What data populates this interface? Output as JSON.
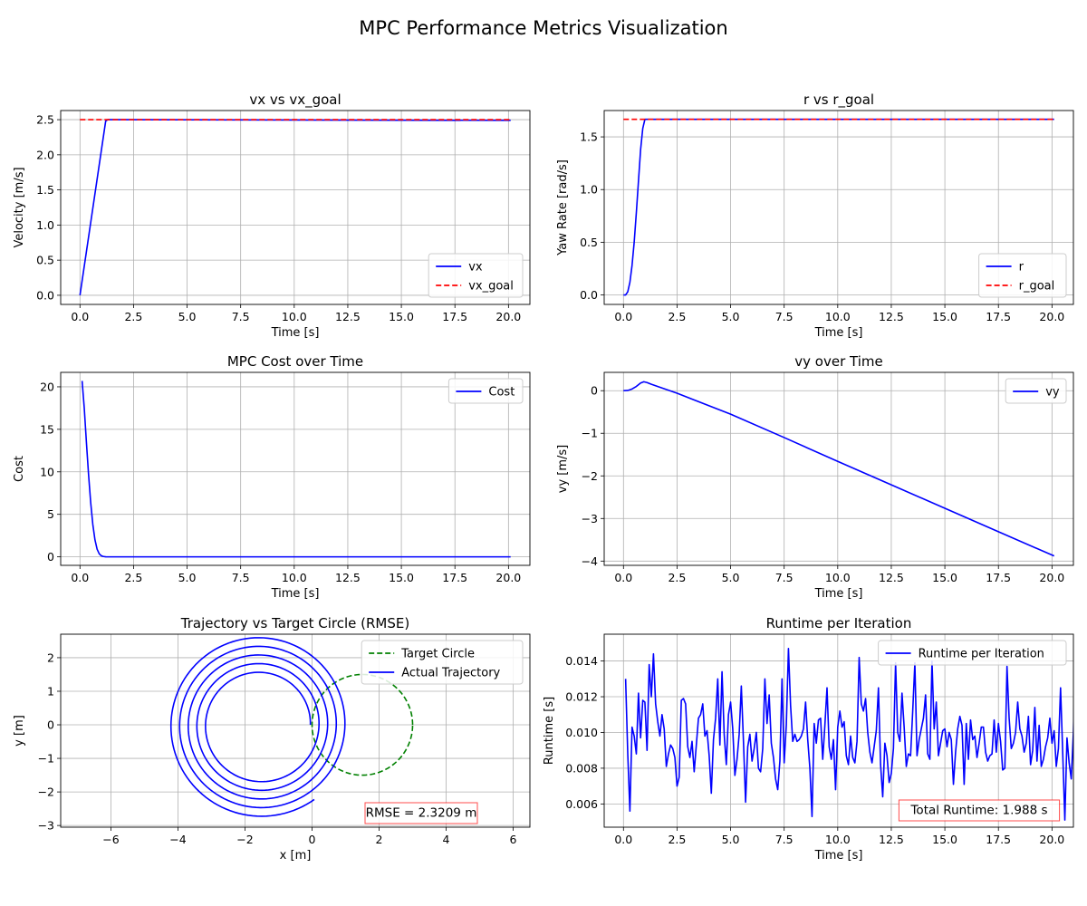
{
  "figure_title": "MPC Performance Metrics Visualization",
  "colors": {
    "blue": "#0000ff",
    "red": "#ff0000",
    "green": "#008000",
    "grid": "#b0b0b0"
  },
  "chart_data": [
    {
      "id": "vx",
      "type": "line",
      "title": "vx vs vx_goal",
      "xlabel": "Time [s]",
      "ylabel": "Velocity [m/s]",
      "xlim": [
        -0.9,
        21.0
      ],
      "ylim": [
        -0.13,
        2.63
      ],
      "xticks": [
        0,
        2.5,
        5,
        7.5,
        10,
        12.5,
        15,
        17.5,
        20
      ],
      "xtick_labels": [
        "0.0",
        "2.5",
        "5.0",
        "7.5",
        "10.0",
        "12.5",
        "15.0",
        "17.5",
        "20.0"
      ],
      "yticks": [
        0,
        0.5,
        1,
        1.5,
        2,
        2.5
      ],
      "ytick_labels": [
        "0.0",
        "0.5",
        "1.0",
        "1.5",
        "2.0",
        "2.5"
      ],
      "grid": true,
      "legend": "lower-right",
      "series": [
        {
          "name": "vx",
          "color": "#0000ff",
          "dash": "solid",
          "x": [
            0,
            1.2,
            1.3,
            20.1
          ],
          "y": [
            0,
            2.48,
            2.5,
            2.49
          ]
        },
        {
          "name": "vx_goal",
          "color": "#ff0000",
          "dash": "dashed",
          "x": [
            0,
            20.1
          ],
          "y": [
            2.5,
            2.5
          ]
        }
      ]
    },
    {
      "id": "r",
      "type": "line",
      "title": "r vs r_goal",
      "xlabel": "Time [s]",
      "ylabel": "Yaw Rate [rad/s]",
      "xlim": [
        -0.9,
        21.0
      ],
      "ylim": [
        -0.09,
        1.75
      ],
      "xticks": [
        0,
        2.5,
        5,
        7.5,
        10,
        12.5,
        15,
        17.5,
        20
      ],
      "xtick_labels": [
        "0.0",
        "2.5",
        "5.0",
        "7.5",
        "10.0",
        "12.5",
        "15.0",
        "17.5",
        "20.0"
      ],
      "yticks": [
        0,
        0.5,
        1,
        1.5
      ],
      "ytick_labels": [
        "0.0",
        "0.5",
        "1.0",
        "1.5"
      ],
      "grid": true,
      "legend": "lower-right",
      "series": [
        {
          "name": "r",
          "color": "#0000ff",
          "dash": "solid",
          "x": [
            0,
            0.1,
            0.2,
            0.3,
            0.4,
            0.5,
            0.6,
            0.7,
            0.8,
            0.9,
            1.0,
            20.1
          ],
          "y": [
            0,
            0,
            0.03,
            0.12,
            0.28,
            0.5,
            0.78,
            1.08,
            1.38,
            1.58,
            1.667,
            1.667
          ]
        },
        {
          "name": "r_goal",
          "color": "#ff0000",
          "dash": "dashed",
          "x": [
            0,
            20.1
          ],
          "y": [
            1.667,
            1.667
          ]
        }
      ]
    },
    {
      "id": "cost",
      "type": "line",
      "title": "MPC Cost over Time",
      "xlabel": "Time [s]",
      "ylabel": "Cost",
      "xlim": [
        -0.9,
        21.0
      ],
      "ylim": [
        -1.0,
        21.7
      ],
      "xticks": [
        0,
        2.5,
        5,
        7.5,
        10,
        12.5,
        15,
        17.5,
        20
      ],
      "xtick_labels": [
        "0.0",
        "2.5",
        "5.0",
        "7.5",
        "10.0",
        "12.5",
        "15.0",
        "17.5",
        "20.0"
      ],
      "yticks": [
        0,
        5,
        10,
        15,
        20
      ],
      "ytick_labels": [
        "0",
        "5",
        "10",
        "15",
        "20"
      ],
      "grid": true,
      "legend": "upper-right",
      "series": [
        {
          "name": "Cost",
          "color": "#0000ff",
          "dash": "solid",
          "x": [
            0.1,
            0.2,
            0.3,
            0.4,
            0.5,
            0.6,
            0.7,
            0.8,
            0.9,
            1.0,
            1.1,
            1.2,
            1.5,
            20.1
          ],
          "y": [
            20.7,
            17.5,
            13.5,
            9.7,
            6.4,
            3.8,
            2.0,
            0.9,
            0.35,
            0.12,
            0.04,
            0.01,
            0.0,
            0.0
          ]
        }
      ]
    },
    {
      "id": "vy",
      "type": "line",
      "title": "vy over Time",
      "xlabel": "Time [s]",
      "ylabel": "vy [m/s]",
      "xlim": [
        -0.9,
        21.0
      ],
      "ylim": [
        -4.1,
        0.43
      ],
      "xticks": [
        0,
        2.5,
        5,
        7.5,
        10,
        12.5,
        15,
        17.5,
        20
      ],
      "xtick_labels": [
        "0.0",
        "2.5",
        "5.0",
        "7.5",
        "10.0",
        "12.5",
        "15.0",
        "17.5",
        "20.0"
      ],
      "yticks": [
        0,
        -1,
        -2,
        -3,
        -4
      ],
      "ytick_labels": [
        "0",
        "−1",
        "−2",
        "−3",
        "−4"
      ],
      "grid": true,
      "legend": "upper-right",
      "series": [
        {
          "name": "vy",
          "color": "#0000ff",
          "dash": "solid",
          "x": [
            0,
            0.2,
            0.4,
            0.6,
            0.8,
            0.95,
            1.1,
            1.3,
            2.5,
            5,
            7.5,
            10,
            12.5,
            15,
            17.5,
            20.1
          ],
          "y": [
            0,
            0.005,
            0.04,
            0.1,
            0.18,
            0.21,
            0.19,
            0.15,
            -0.06,
            -0.55,
            -1.1,
            -1.66,
            -2.21,
            -2.76,
            -3.31,
            -3.88
          ]
        }
      ]
    },
    {
      "id": "traj",
      "type": "line",
      "title": "Trajectory vs Target Circle (RMSE)",
      "xlabel": "x [m]",
      "ylabel": "y [m]",
      "xlim": [
        -7.5,
        6.5
      ],
      "ylim": [
        -3.05,
        2.7
      ],
      "xticks": [
        -6,
        -4,
        -2,
        0,
        2,
        4,
        6
      ],
      "xtick_labels": [
        "−6",
        "−4",
        "−2",
        "0",
        "2",
        "4",
        "6"
      ],
      "yticks": [
        -3,
        -2,
        -1,
        0,
        1,
        2
      ],
      "ytick_labels": [
        "−3",
        "−2",
        "−1",
        "0",
        "1",
        "2"
      ],
      "grid": true,
      "legend": "upper-right",
      "series": [
        {
          "name": "Target Circle",
          "color": "#008000",
          "dash": "dashed",
          "circle": {
            "cx": 1.5,
            "cy": 0,
            "r": 1.5
          }
        },
        {
          "name": "Actual Trajectory",
          "color": "#0000ff",
          "dash": "solid",
          "spiral": {
            "cx": -1.55,
            "cy": 0,
            "r_start": 1.5,
            "r_end": 2.75,
            "turns": 4.85,
            "start_angle_deg": 0
          }
        }
      ],
      "annotation": {
        "text": "RMSE = 2.3209 m",
        "color": "#ff0000"
      }
    },
    {
      "id": "runtime",
      "type": "line",
      "title": "Runtime per Iteration",
      "xlabel": "Time [s]",
      "ylabel": "Runtime [s]",
      "xlim": [
        -0.9,
        21.0
      ],
      "ylim": [
        0.0047,
        0.0155
      ],
      "xticks": [
        0,
        2.5,
        5,
        7.5,
        10,
        12.5,
        15,
        17.5,
        20
      ],
      "xtick_labels": [
        "0.0",
        "2.5",
        "5.0",
        "7.5",
        "10.0",
        "12.5",
        "15.0",
        "17.5",
        "20.0"
      ],
      "yticks": [
        0.006,
        0.008,
        0.01,
        0.012,
        0.014
      ],
      "ytick_labels": [
        "0.006",
        "0.008",
        "0.010",
        "0.012",
        "0.014"
      ],
      "grid": true,
      "legend": "upper-right",
      "series": [
        {
          "name": "Runtime per Iteration",
          "color": "#0000ff",
          "dash": "solid",
          "x_start": 0.1,
          "x_step": 0.1,
          "y": [
            0.013,
            0.0088,
            0.0056,
            0.0103,
            0.0098,
            0.0088,
            0.0122,
            0.0097,
            0.0118,
            0.0117,
            0.009,
            0.0138,
            0.012,
            0.0144,
            0.0116,
            0.0106,
            0.0098,
            0.011,
            0.0102,
            0.0081,
            0.0088,
            0.0093,
            0.0091,
            0.0086,
            0.007,
            0.0075,
            0.0118,
            0.0119,
            0.0116,
            0.0092,
            0.0086,
            0.0095,
            0.0078,
            0.0093,
            0.0108,
            0.011,
            0.0116,
            0.0098,
            0.0101,
            0.0087,
            0.0066,
            0.0096,
            0.0108,
            0.013,
            0.0093,
            0.0134,
            0.0099,
            0.0082,
            0.011,
            0.0117,
            0.0102,
            0.0076,
            0.0085,
            0.0099,
            0.0126,
            0.0095,
            0.0061,
            0.0092,
            0.0099,
            0.0084,
            0.0091,
            0.01,
            0.008,
            0.0078,
            0.0091,
            0.013,
            0.0105,
            0.0121,
            0.0094,
            0.0086,
            0.0074,
            0.0068,
            0.0084,
            0.013,
            0.0083,
            0.0104,
            0.0147,
            0.0115,
            0.0095,
            0.0099,
            0.0095,
            0.0096,
            0.0098,
            0.0102,
            0.0117,
            0.0096,
            0.008,
            0.0053,
            0.0105,
            0.0094,
            0.0107,
            0.0108,
            0.0085,
            0.0104,
            0.0125,
            0.0092,
            0.0085,
            0.0096,
            0.0068,
            0.0103,
            0.0112,
            0.0103,
            0.0106,
            0.0087,
            0.0082,
            0.0098,
            0.0086,
            0.0083,
            0.0095,
            0.0142,
            0.0116,
            0.0112,
            0.0119,
            0.01,
            0.0089,
            0.0083,
            0.0092,
            0.0101,
            0.0125,
            0.0082,
            0.0064,
            0.0094,
            0.0087,
            0.0072,
            0.0077,
            0.0091,
            0.0139,
            0.01,
            0.0095,
            0.0122,
            0.0103,
            0.0081,
            0.0088,
            0.0087,
            0.0112,
            0.0139,
            0.0087,
            0.0096,
            0.0102,
            0.0108,
            0.0121,
            0.0088,
            0.0085,
            0.014,
            0.0102,
            0.0117,
            0.0087,
            0.0094,
            0.0101,
            0.0102,
            0.0092,
            0.01,
            0.0096,
            0.0071,
            0.0089,
            0.0102,
            0.0109,
            0.0104,
            0.0071,
            0.0105,
            0.0085,
            0.0107,
            0.0096,
            0.0098,
            0.0086,
            0.0094,
            0.0103,
            0.0103,
            0.0089,
            0.0084,
            0.0087,
            0.0088,
            0.0107,
            0.0089,
            0.0105,
            0.0095,
            0.0079,
            0.008,
            0.0137,
            0.0108,
            0.0091,
            0.0094,
            0.01,
            0.0117,
            0.0102,
            0.0098,
            0.0089,
            0.0094,
            0.0109,
            0.0082,
            0.009,
            0.0114,
            0.0084,
            0.0104,
            0.0081,
            0.0085,
            0.0092,
            0.0097,
            0.0108,
            0.0094,
            0.0101,
            0.0081,
            0.0091,
            0.0125,
            0.0089,
            0.0051,
            0.0097,
            0.0083,
            0.0074,
            0.01,
            0.015,
            0.0118,
            0.0068,
            0.0081,
            0.0107,
            0.0127,
            0.0101,
            0.01,
            0.0093,
            0.0086
          ]
        }
      ],
      "annotation": {
        "text": "Total Runtime: 1.988 s",
        "color": "#ff0000"
      }
    }
  ]
}
